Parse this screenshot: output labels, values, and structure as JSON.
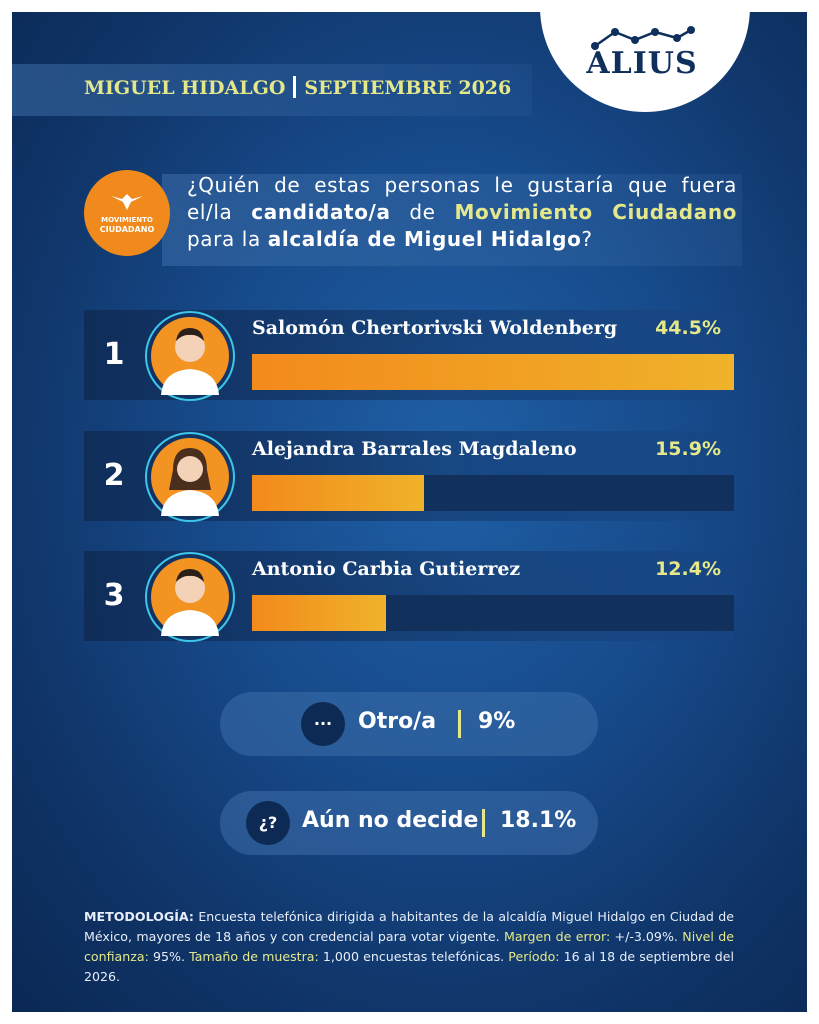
{
  "brand": {
    "name": "ALIUS"
  },
  "header": {
    "location": "MIGUEL HIDALGO",
    "date": "SEPTIEMBRE 2026"
  },
  "party_logo": {
    "line1": "MOVIMIENTO",
    "line2": "CIUDADANO",
    "color": "#f08a1c"
  },
  "question": {
    "p1": "¿Quién de estas personas le gustaría que fuera el/la ",
    "b1": "candidato/a",
    "p2": " de ",
    "y1": "Movimiento Ciudadano",
    "p3": " para la ",
    "b2": "alcaldía de Miguel Hidalgo",
    "p4": "?"
  },
  "chart_data": {
    "type": "bar",
    "categories": [
      "Salomón Chertorivski Woldenberg",
      "Alejandra Barrales Magdaleno",
      "Antonio Carbia Gutierrez"
    ],
    "values": [
      44.5,
      15.9,
      12.4
    ],
    "value_labels": [
      "44.5%",
      "15.9%",
      "12.4%"
    ],
    "ranks": [
      "1",
      "2",
      "3"
    ],
    "xlim": [
      0,
      44.5
    ],
    "colors": {
      "fill_start": "#f28a1c",
      "fill_end": "#f0b22a",
      "track": "#12305c"
    }
  },
  "others": [
    {
      "icon": "···",
      "label": "Otro/a",
      "value": "9%"
    },
    {
      "icon": "¿?",
      "label": "Aún no decide",
      "value": "18.1%"
    }
  ],
  "methodology": {
    "title": "METODOLOGÍA:",
    "t1": " Encuesta telefónica dirigida a habitantes de la alcaldía Miguel Hidalgo en Ciudad de México, mayores de 18 años y con credencial para votar vigente. ",
    "k1": "Margen de error:",
    "v1": " +/-3.09%. ",
    "k2": "Nivel de confianza:",
    "v2": " 95%. ",
    "k3": "Tamaño de muestra:",
    "v3": " 1,000 encuestas telefónicas. ",
    "k4": "Período:",
    "v4": " 16 al 18 de septiembre del 2026."
  }
}
